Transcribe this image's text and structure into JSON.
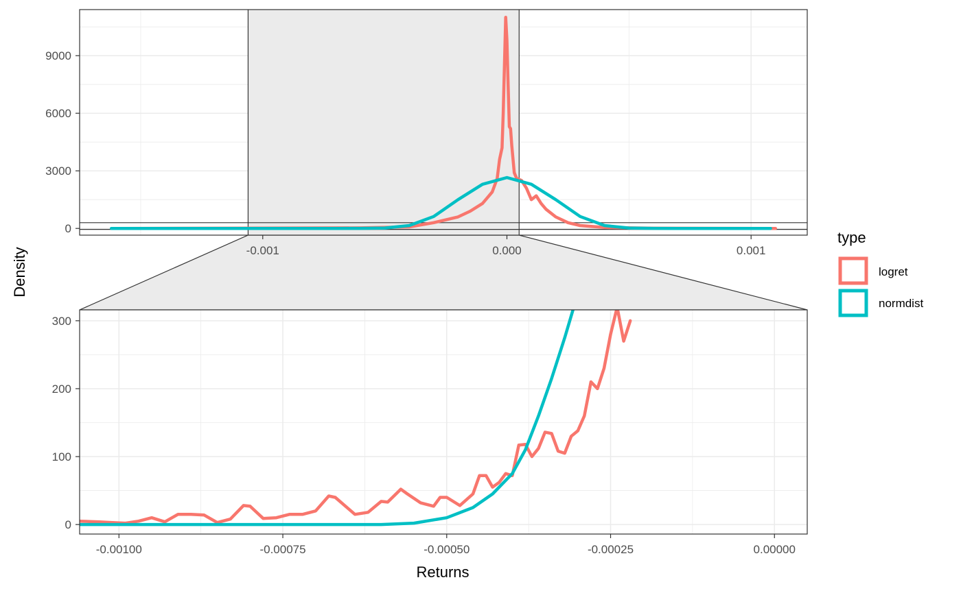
{
  "chart_data": [
    {
      "panel": "overview",
      "type": "line",
      "xlim": [
        -0.00175,
        0.00123
      ],
      "ylim": [
        -350,
        11400
      ],
      "x_ticks": [
        -0.001,
        0.0,
        0.001
      ],
      "x_tick_labels": [
        "-0.001",
        "0.000",
        "0.001"
      ],
      "y_ticks": [
        0,
        3000,
        6000,
        9000
      ],
      "y_tick_labels": [
        "0",
        "3000",
        "6000",
        "9000"
      ],
      "zoom_region": {
        "x": [
          -0.00106,
          5e-05
        ],
        "y": [
          -50,
          300
        ]
      },
      "series": [
        {
          "name": "logret",
          "x": [
            -0.0016,
            -0.0006,
            -0.0004,
            -0.0003,
            -0.0002,
            -0.00015,
            -0.0001,
            -8e-05,
            -6e-05,
            -4e-05,
            -3e-05,
            -2e-05,
            -1.5e-05,
            -1e-05,
            -5e-06,
            0.0,
            5e-06,
            1e-05,
            1.5e-05,
            2e-05,
            3e-05,
            4e-05,
            6e-05,
            8e-05,
            0.0001,
            0.00012,
            0.00014,
            0.00016,
            0.0002,
            0.00025,
            0.0003,
            0.0004,
            0.0006,
            0.0011
          ],
          "y": [
            0,
            30,
            80,
            300,
            600,
            900,
            1300,
            1600,
            1900,
            2600,
            3600,
            4200,
            6000,
            8500,
            11000,
            9800,
            7400,
            5300,
            5200,
            4300,
            2900,
            2600,
            2500,
            2100,
            1500,
            1700,
            1300,
            1000,
            600,
            300,
            150,
            50,
            10,
            0
          ]
        },
        {
          "name": "normdist",
          "x": [
            -0.00162,
            -0.0007,
            -0.0006,
            -0.0005,
            -0.0004,
            -0.0003,
            -0.0002,
            -0.0001,
            0.0,
            0.0001,
            0.0002,
            0.0003,
            0.0004,
            0.0005,
            0.0006,
            0.0007,
            0.00108
          ],
          "y": [
            0,
            0.5,
            3,
            22,
            150,
            620,
            1500,
            2300,
            2650,
            2300,
            1500,
            620,
            150,
            22,
            3,
            0.5,
            0
          ]
        }
      ]
    },
    {
      "panel": "zoom",
      "type": "line",
      "xlabel": "Returns",
      "ylabel": "Density",
      "xlim": [
        -0.00106,
        5e-05
      ],
      "ylim": [
        -14,
        316
      ],
      "x_ticks": [
        -0.001,
        -0.00075,
        -0.0005,
        -0.00025,
        0.0
      ],
      "x_tick_labels": [
        "-0.00100",
        "-0.00075",
        "-0.00050",
        "-0.00025",
        "0.00000"
      ],
      "y_ticks": [
        0,
        100,
        200,
        300
      ],
      "y_tick_labels": [
        "0",
        "100",
        "200",
        "300"
      ],
      "series": [
        {
          "name": "logret",
          "x": [
            -0.00106,
            -0.00103,
            -0.00101,
            -0.00099,
            -0.00097,
            -0.00095,
            -0.00093,
            -0.00091,
            -0.00089,
            -0.00087,
            -0.00085,
            -0.00083,
            -0.00081,
            -0.0008,
            -0.00078,
            -0.00076,
            -0.00074,
            -0.00072,
            -0.0007,
            -0.00068,
            -0.00067,
            -0.00064,
            -0.00062,
            -0.0006,
            -0.00059,
            -0.00057,
            -0.00056,
            -0.00054,
            -0.00052,
            -0.00051,
            -0.0005,
            -0.00048,
            -0.00046,
            -0.00045,
            -0.00044,
            -0.00043,
            -0.00042,
            -0.00041,
            -0.0004,
            -0.00039,
            -0.00038,
            -0.00037,
            -0.00036,
            -0.00035,
            -0.00034,
            -0.00033,
            -0.00032,
            -0.00031,
            -0.0003,
            -0.00029,
            -0.00028,
            -0.00027,
            -0.00026,
            -0.00025,
            -0.00024,
            -0.00023,
            -0.00022
          ],
          "y": [
            5,
            4,
            3,
            2,
            5,
            10,
            4,
            15,
            15,
            14,
            3,
            8,
            28,
            27,
            9,
            10,
            15,
            15,
            20,
            42,
            40,
            15,
            18,
            34,
            33,
            52,
            45,
            32,
            27,
            40,
            40,
            28,
            45,
            72,
            72,
            55,
            62,
            75,
            72,
            117,
            118,
            100,
            112,
            136,
            134,
            108,
            105,
            130,
            138,
            160,
            210,
            200,
            230,
            280,
            320,
            270,
            300
          ]
        },
        {
          "name": "normdist",
          "x": [
            -0.00106,
            -0.0006,
            -0.00055,
            -0.0005,
            -0.00046,
            -0.00043,
            -0.0004,
            -0.00038,
            -0.00036,
            -0.00034,
            -0.00032,
            -0.0003,
            -0.00029
          ],
          "y": [
            0,
            0,
            2,
            10,
            25,
            45,
            75,
            110,
            160,
            215,
            275,
            340,
            380
          ]
        }
      ]
    }
  ],
  "legend": {
    "title": "type",
    "items": [
      {
        "label": "logret",
        "color": "#F8766D"
      },
      {
        "label": "normdist",
        "color": "#00BFC4"
      }
    ]
  },
  "colors": {
    "logret": "#F8766D",
    "normdist": "#00BFC4",
    "grid": "#ebebeb",
    "zoom_fill": "#ebebeb",
    "border": "#333333"
  }
}
